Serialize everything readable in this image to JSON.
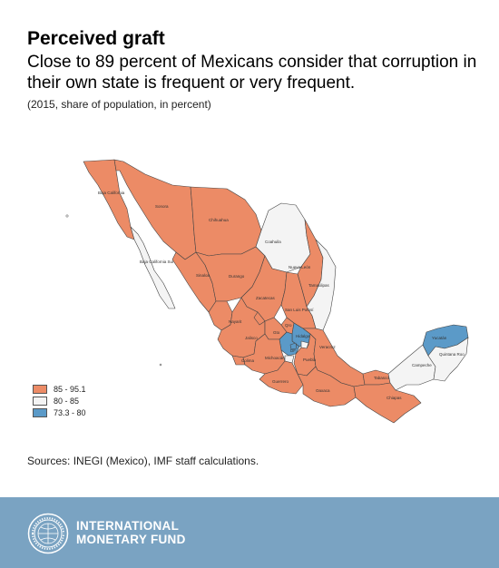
{
  "header": {
    "title": "Perceived graft",
    "subtitle": "Close to 89 percent of Mexicans consider that corruption in their own state is frequent or very frequent.",
    "note": "(2015, share of population, in percent)"
  },
  "colors": {
    "high": "#ec8b66",
    "mid": "#f4f4f4",
    "low": "#5b9ac8",
    "border": "#444444",
    "footer": "#7aa3c2"
  },
  "legend": [
    {
      "label": "85 - 95.1",
      "color": "#ec8b66"
    },
    {
      "label": "80 - 85",
      "color": "#f4f4f4"
    },
    {
      "label": "73.3 - 80",
      "color": "#5b9ac8"
    }
  ],
  "map_labels": {
    "baja_california": "Baja California",
    "baja_california_sur": "Baja California Sur",
    "sonora": "Sonora",
    "chihuahua": "Chihuahua",
    "coahuila": "Coahuila",
    "nuevo_leon": "Nuevo León",
    "tamaulipas": "Tamaulipas",
    "sinaloa": "Sinaloa",
    "durango": "Durango",
    "zacatecas": "Zacatecas",
    "san_luis_potosi": "San Luis Potosí",
    "nayarit": "Nayarit",
    "jalisco": "Jalisco",
    "colima": "Colima",
    "michoacan": "Michoacán",
    "guerrero": "Guerrero",
    "oaxaca": "Oaxaca",
    "chiapas": "Chiapas",
    "veracruz": "Veracruz",
    "puebla": "Puebla",
    "tabasco": "Tabasco",
    "campeche": "Campeche",
    "yucatan": "Yucatán",
    "quintana_roo": "Quintana Roo",
    "hidalgo": "Hidalgo",
    "mexico_city": "DF",
    "queretaro": "Qro",
    "guanajuato": "Gto"
  },
  "source": "Sources: INEGI (Mexico), IMF staff calculations.",
  "footer": {
    "line1": "INTERNATIONAL",
    "line2": "MONETARY FUND"
  }
}
